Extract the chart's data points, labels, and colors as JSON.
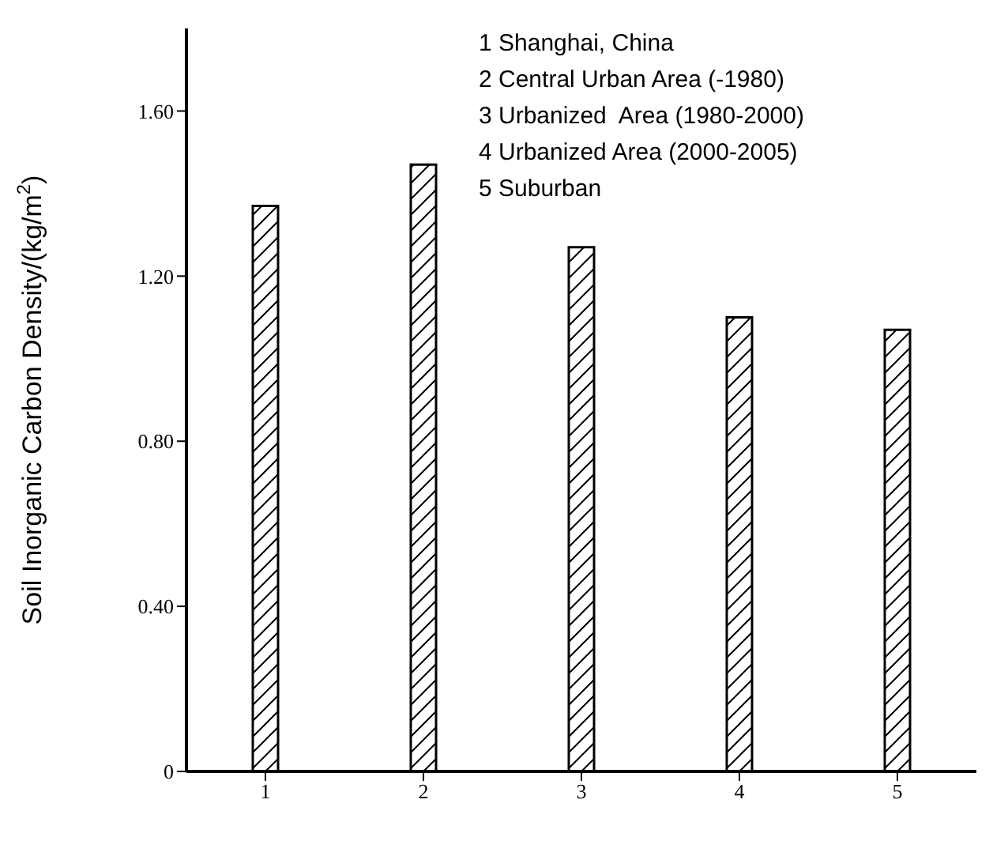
{
  "chart_data": {
    "type": "bar",
    "ylabel": "Soil Inorganic Carbon Density/(kg/m$^{2}$)",
    "categories": [
      "1",
      "2",
      "3",
      "4",
      "5"
    ],
    "values": [
      1.37,
      1.47,
      1.27,
      1.1,
      1.07
    ],
    "color": "#000000",
    "ylim": [
      0,
      1.8
    ],
    "yticks": [
      0,
      {
        "value": 0.4,
        "label": "0.40"
      },
      {
        "value": 0.8,
        "label": "0.80"
      },
      {
        "value": 1.2,
        "label": "1.20"
      },
      {
        "value": 1.6,
        "label": "1.60"
      }
    ],
    "annotations": [
      "1 Shanghai, China",
      "2 Central Urban Area (-1980)",
      "3 Urbanized  Area (1980-2000)",
      "4 Urbanized Area (2000-2005)",
      "5 Suburban"
    ],
    "grid": false,
    "legend": false
  }
}
